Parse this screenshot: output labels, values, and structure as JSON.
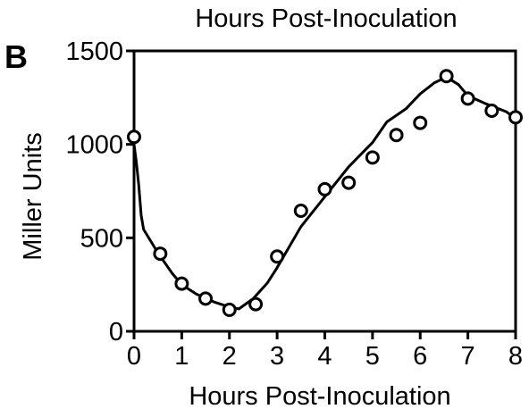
{
  "panel": {
    "top_title": "Hours Post-Inoculation",
    "letter": "B"
  },
  "chart_data": {
    "type": "line",
    "title": "",
    "xlabel": "Hours Post-Inoculation",
    "ylabel": "Miller Units",
    "xlim": [
      0,
      8
    ],
    "ylim": [
      0,
      1500
    ],
    "x_ticks": [
      "0",
      "1",
      "2",
      "3",
      "4",
      "5",
      "6",
      "7",
      "8"
    ],
    "y_ticks": [
      "0",
      "500",
      "1000",
      "1500"
    ],
    "grid": false,
    "legend": "none",
    "series": [
      {
        "kind": "scatter",
        "marker": "open-circle",
        "color": "#000000",
        "points": [
          {
            "x": 0.0,
            "y": 1040
          },
          {
            "x": 0.55,
            "y": 415
          },
          {
            "x": 1.0,
            "y": 255
          },
          {
            "x": 1.5,
            "y": 175
          },
          {
            "x": 2.0,
            "y": 115
          },
          {
            "x": 2.55,
            "y": 145
          },
          {
            "x": 3.0,
            "y": 400
          },
          {
            "x": 3.5,
            "y": 645
          },
          {
            "x": 4.0,
            "y": 760
          },
          {
            "x": 4.5,
            "y": 795
          },
          {
            "x": 5.0,
            "y": 930
          },
          {
            "x": 5.5,
            "y": 1050
          },
          {
            "x": 6.0,
            "y": 1115
          },
          {
            "x": 6.55,
            "y": 1365
          },
          {
            "x": 7.0,
            "y": 1245
          },
          {
            "x": 7.5,
            "y": 1180
          },
          {
            "x": 8.0,
            "y": 1145
          }
        ]
      },
      {
        "kind": "line",
        "color": "#000000",
        "points": [
          {
            "x": 0.0,
            "y": 1000
          },
          {
            "x": 0.05,
            "y": 900
          },
          {
            "x": 0.1,
            "y": 780
          },
          {
            "x": 0.15,
            "y": 620
          },
          {
            "x": 0.2,
            "y": 545
          },
          {
            "x": 0.5,
            "y": 420
          },
          {
            "x": 0.8,
            "y": 310
          },
          {
            "x": 1.0,
            "y": 250
          },
          {
            "x": 1.3,
            "y": 200
          },
          {
            "x": 1.7,
            "y": 155
          },
          {
            "x": 2.0,
            "y": 130
          },
          {
            "x": 2.2,
            "y": 120
          },
          {
            "x": 2.5,
            "y": 175
          },
          {
            "x": 2.8,
            "y": 260
          },
          {
            "x": 3.0,
            "y": 340
          },
          {
            "x": 3.5,
            "y": 560
          },
          {
            "x": 4.0,
            "y": 720
          },
          {
            "x": 4.5,
            "y": 880
          },
          {
            "x": 5.0,
            "y": 1010
          },
          {
            "x": 5.3,
            "y": 1120
          },
          {
            "x": 5.7,
            "y": 1190
          },
          {
            "x": 6.0,
            "y": 1270
          },
          {
            "x": 6.3,
            "y": 1330
          },
          {
            "x": 6.55,
            "y": 1360
          },
          {
            "x": 6.8,
            "y": 1320
          },
          {
            "x": 7.0,
            "y": 1260
          },
          {
            "x": 7.4,
            "y": 1215
          },
          {
            "x": 7.8,
            "y": 1175
          },
          {
            "x": 8.0,
            "y": 1140
          }
        ]
      }
    ]
  }
}
